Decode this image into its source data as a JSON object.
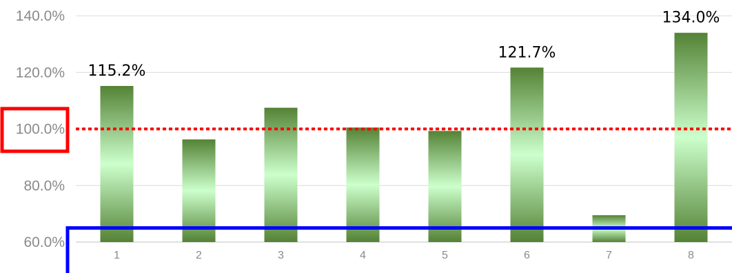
{
  "chart_data": {
    "type": "bar",
    "categories": [
      "1",
      "2",
      "3",
      "4",
      "5",
      "6",
      "7",
      "8"
    ],
    "values": [
      115.2,
      96.3,
      107.5,
      100.5,
      99.3,
      121.7,
      69.5,
      134.0
    ],
    "data_labels": [
      "115.2%",
      "",
      "",
      "",
      "",
      "121.7%",
      "",
      "134.0%"
    ],
    "y_ticks": [
      "60.0%",
      "80.0%",
      "100.0%",
      "120.0%",
      "140.0%"
    ],
    "ylim": [
      60,
      140
    ],
    "reference_line": 100,
    "annotation_threshold": 65,
    "grid": true,
    "colors": {
      "bar_dark": "#548235",
      "bar_light": "#ccffcc",
      "reference_line": "#ff0000",
      "highlight_box": "#ff0000",
      "threshold_line": "#0000ff",
      "gridline": "#d9d9d9",
      "tick_text": "#8a8a8a"
    }
  }
}
